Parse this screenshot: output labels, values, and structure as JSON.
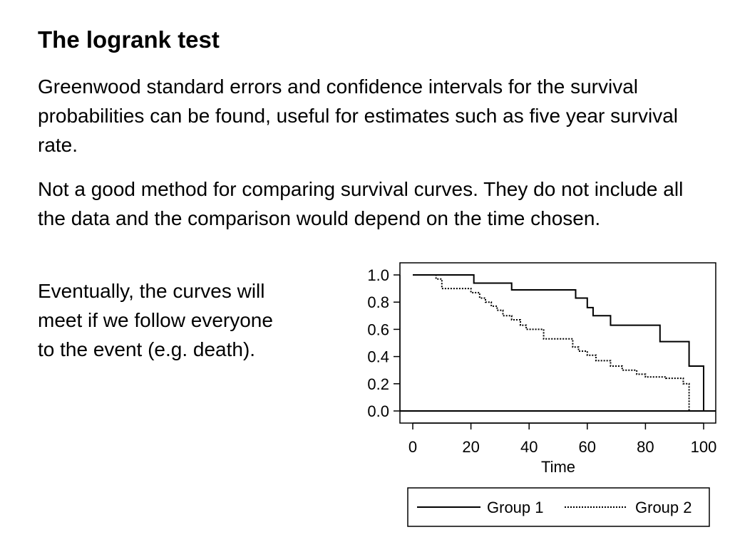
{
  "slide": {
    "title": "The logrank test",
    "paragraphs": [
      "Greenwood standard errors and confidence intervals for the survival probabilities can be found, useful for estimates such as five year survival rate.",
      "Not a good method for comparing survival curves.  They do not include all the data and the comparison would depend on the time chosen.",
      "Eventually, the curves will meet if we follow everyone to the event (e.g. death)."
    ]
  },
  "chart_data": {
    "type": "line",
    "step": true,
    "title": "",
    "xlabel": "Time",
    "ylabel": "",
    "xlim": [
      0,
      100
    ],
    "ylim": [
      0,
      1
    ],
    "x_ticks": [
      "0",
      "20",
      "40",
      "60",
      "80",
      "100"
    ],
    "y_ticks": [
      "0.0",
      "0.2",
      "0.4",
      "0.6",
      "0.8",
      "1.0"
    ],
    "grid": false,
    "legend_position": "bottom",
    "series": [
      {
        "name": "Group 1",
        "style": "solid",
        "color": "#000000",
        "x": [
          0,
          21,
          34,
          56,
          60,
          62,
          68,
          85,
          95,
          100
        ],
        "y": [
          1.0,
          0.94,
          0.89,
          0.83,
          0.76,
          0.7,
          0.63,
          0.51,
          0.33,
          0.0
        ]
      },
      {
        "name": "Group 2",
        "style": "dotted",
        "color": "#000000",
        "x": [
          0,
          8,
          10,
          20,
          23,
          25,
          27,
          29,
          31,
          34,
          37,
          39,
          45,
          48,
          55,
          57,
          60,
          63,
          68,
          72,
          77,
          80,
          87,
          93,
          95
        ],
        "y": [
          1.0,
          0.97,
          0.9,
          0.87,
          0.83,
          0.8,
          0.77,
          0.74,
          0.7,
          0.67,
          0.63,
          0.6,
          0.53,
          0.53,
          0.47,
          0.44,
          0.41,
          0.37,
          0.33,
          0.3,
          0.27,
          0.25,
          0.24,
          0.2,
          0.0
        ]
      }
    ]
  }
}
